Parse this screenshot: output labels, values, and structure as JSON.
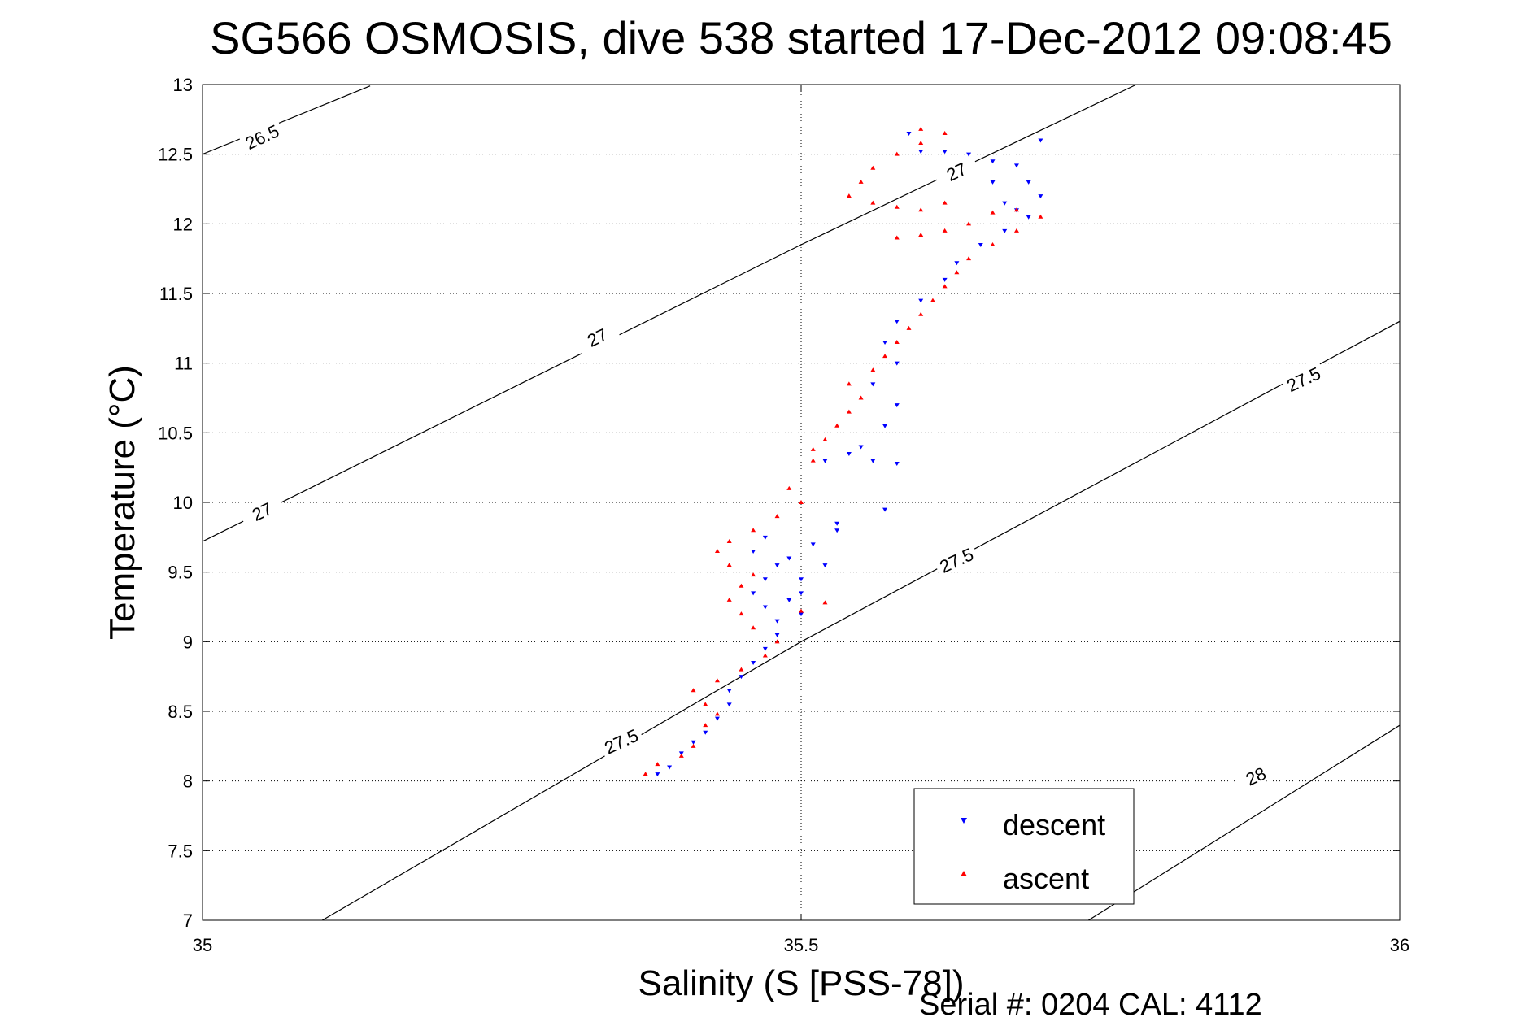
{
  "chart_data": {
    "type": "scatter",
    "title": "SG566 OSMOSIS, dive 538 started 17-Dec-2012 09:08:45",
    "xlabel": "Salinity (S [PSS-78])",
    "ylabel": "Temperature (°C)",
    "xlim": [
      35,
      36
    ],
    "ylim": [
      7,
      13
    ],
    "xticks": [
      "35",
      "35.5",
      "36"
    ],
    "yticks": [
      "7",
      "7.5",
      "8",
      "8.5",
      "9",
      "9.5",
      "10",
      "10.5",
      "11",
      "11.5",
      "12",
      "12.5",
      "13"
    ],
    "grid": true,
    "legend_position": "bottom-right",
    "footer": "Serial #: 0204  CAL: 4112",
    "colors": {
      "descent": "#0000ff",
      "ascent": "#ff0000",
      "contour": "#000000"
    },
    "contours": [
      {
        "level": "26.5",
        "points": [
          [
            35.0,
            12.5
          ],
          [
            35.14,
            12.99
          ]
        ]
      },
      {
        "level": "27",
        "points": [
          [
            35.0,
            9.72
          ],
          [
            35.5,
            11.85
          ],
          [
            35.78,
            13.0
          ]
        ]
      },
      {
        "level": "27.5",
        "points": [
          [
            35.1,
            7.0
          ],
          [
            35.5,
            9.0
          ],
          [
            36.0,
            11.3
          ]
        ]
      },
      {
        "level": "28",
        "points": [
          [
            35.74,
            7.0
          ],
          [
            36.0,
            8.4
          ]
        ]
      }
    ],
    "contour_labels": [
      {
        "text": "26.5",
        "x": 35.05,
        "y": 12.62
      },
      {
        "text": "27",
        "x": 35.05,
        "y": 9.93
      },
      {
        "text": "27",
        "x": 35.33,
        "y": 11.18
      },
      {
        "text": "27",
        "x": 35.63,
        "y": 12.37
      },
      {
        "text": "27.5",
        "x": 35.35,
        "y": 8.28
      },
      {
        "text": "27.5",
        "x": 35.63,
        "y": 9.58
      },
      {
        "text": "27.5",
        "x": 35.92,
        "y": 10.88
      },
      {
        "text": "28",
        "x": 35.88,
        "y": 8.03
      }
    ],
    "series": [
      {
        "name": "descent",
        "marker": "triangle-down",
        "points": [
          [
            35.38,
            8.05
          ],
          [
            35.39,
            8.1
          ],
          [
            35.4,
            8.2
          ],
          [
            35.41,
            8.28
          ],
          [
            35.42,
            8.35
          ],
          [
            35.43,
            8.45
          ],
          [
            35.44,
            8.55
          ],
          [
            35.44,
            8.65
          ],
          [
            35.45,
            8.75
          ],
          [
            35.46,
            8.85
          ],
          [
            35.47,
            8.95
          ],
          [
            35.48,
            9.05
          ],
          [
            35.48,
            9.15
          ],
          [
            35.47,
            9.25
          ],
          [
            35.46,
            9.35
          ],
          [
            35.47,
            9.45
          ],
          [
            35.48,
            9.55
          ],
          [
            35.46,
            9.65
          ],
          [
            35.47,
            9.75
          ],
          [
            35.49,
            9.6
          ],
          [
            35.5,
            9.45
          ],
          [
            35.49,
            9.3
          ],
          [
            35.5,
            9.2
          ],
          [
            35.51,
            9.7
          ],
          [
            35.53,
            9.8
          ],
          [
            35.52,
            9.55
          ],
          [
            35.5,
            9.35
          ],
          [
            35.52,
            10.3
          ],
          [
            35.54,
            10.35
          ],
          [
            35.56,
            10.3
          ],
          [
            35.58,
            10.28
          ],
          [
            35.55,
            10.4
          ],
          [
            35.57,
            10.55
          ],
          [
            35.58,
            10.7
          ],
          [
            35.56,
            10.85
          ],
          [
            35.58,
            11.0
          ],
          [
            35.57,
            11.15
          ],
          [
            35.58,
            11.3
          ],
          [
            35.6,
            11.45
          ],
          [
            35.62,
            11.6
          ],
          [
            35.63,
            11.72
          ],
          [
            35.65,
            11.85
          ],
          [
            35.67,
            11.95
          ],
          [
            35.69,
            12.05
          ],
          [
            35.7,
            12.2
          ],
          [
            35.69,
            12.3
          ],
          [
            35.68,
            12.42
          ],
          [
            35.66,
            12.45
          ],
          [
            35.64,
            12.5
          ],
          [
            35.62,
            12.52
          ],
          [
            35.6,
            12.52
          ],
          [
            35.66,
            12.3
          ],
          [
            35.67,
            12.15
          ],
          [
            35.68,
            12.1
          ],
          [
            35.59,
            12.65
          ],
          [
            35.7,
            12.6
          ],
          [
            35.57,
            9.95
          ],
          [
            35.53,
            9.85
          ]
        ]
      },
      {
        "name": "ascent",
        "marker": "triangle-up",
        "points": [
          [
            35.37,
            8.05
          ],
          [
            35.38,
            8.12
          ],
          [
            35.4,
            8.18
          ],
          [
            35.41,
            8.25
          ],
          [
            35.42,
            8.4
          ],
          [
            35.43,
            8.48
          ],
          [
            35.42,
            8.55
          ],
          [
            35.41,
            8.65
          ],
          [
            35.43,
            8.72
          ],
          [
            35.45,
            8.8
          ],
          [
            35.47,
            8.9
          ],
          [
            35.48,
            9.0
          ],
          [
            35.46,
            9.1
          ],
          [
            35.45,
            9.2
          ],
          [
            35.44,
            9.3
          ],
          [
            35.45,
            9.4
          ],
          [
            35.46,
            9.48
          ],
          [
            35.44,
            9.55
          ],
          [
            35.43,
            9.65
          ],
          [
            35.44,
            9.72
          ],
          [
            35.46,
            9.8
          ],
          [
            35.48,
            9.9
          ],
          [
            35.5,
            10.0
          ],
          [
            35.49,
            10.1
          ],
          [
            35.5,
            9.22
          ],
          [
            35.52,
            9.28
          ],
          [
            35.51,
            10.3
          ],
          [
            35.51,
            10.38
          ],
          [
            35.52,
            10.45
          ],
          [
            35.53,
            10.55
          ],
          [
            35.54,
            10.65
          ],
          [
            35.55,
            10.75
          ],
          [
            35.54,
            10.85
          ],
          [
            35.56,
            10.95
          ],
          [
            35.57,
            11.05
          ],
          [
            35.58,
            11.15
          ],
          [
            35.59,
            11.25
          ],
          [
            35.6,
            11.35
          ],
          [
            35.61,
            11.45
          ],
          [
            35.62,
            11.55
          ],
          [
            35.63,
            11.65
          ],
          [
            35.64,
            11.75
          ],
          [
            35.66,
            11.85
          ],
          [
            35.68,
            11.95
          ],
          [
            35.7,
            12.05
          ],
          [
            35.68,
            12.1
          ],
          [
            35.66,
            12.08
          ],
          [
            35.64,
            12.0
          ],
          [
            35.62,
            11.95
          ],
          [
            35.6,
            11.92
          ],
          [
            35.58,
            11.9
          ],
          [
            35.6,
            12.1
          ],
          [
            35.62,
            12.15
          ],
          [
            35.58,
            12.12
          ],
          [
            35.56,
            12.15
          ],
          [
            35.54,
            12.2
          ],
          [
            35.55,
            12.3
          ],
          [
            35.56,
            12.4
          ],
          [
            35.58,
            12.5
          ],
          [
            35.6,
            12.58
          ],
          [
            35.62,
            12.65
          ],
          [
            35.6,
            12.68
          ]
        ]
      }
    ]
  }
}
